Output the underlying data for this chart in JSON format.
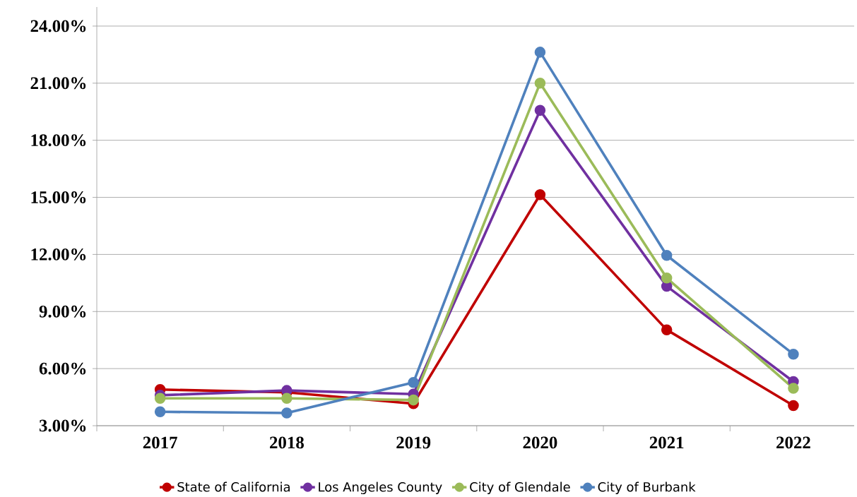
{
  "chart_data": {
    "type": "line",
    "categories": [
      "2017",
      "2018",
      "2019",
      "2020",
      "2021",
      "2022"
    ],
    "series": [
      {
        "name": "State of California",
        "color": "#c00000",
        "values": [
          4.9,
          4.75,
          4.16,
          15.14,
          8.04,
          4.06
        ]
      },
      {
        "name": "Los Angeles County",
        "color": "#7030a0",
        "values": [
          4.6,
          4.85,
          4.66,
          19.57,
          10.33,
          5.32
        ]
      },
      {
        "name": "City of Glendale",
        "color": "#9bbb59",
        "values": [
          4.44,
          4.44,
          4.35,
          21.0,
          10.76,
          4.97
        ]
      },
      {
        "name": "City of Burbank",
        "color": "#4f81bd",
        "values": [
          3.73,
          3.67,
          5.27,
          22.63,
          11.95,
          6.76
        ]
      }
    ],
    "ylim": [
      3,
      25
    ],
    "yticks": [
      {
        "value": 3,
        "label": "3.00%"
      },
      {
        "value": 6,
        "label": "6.00%"
      },
      {
        "value": 9,
        "label": "9.00%"
      },
      {
        "value": 12,
        "label": "12.00%"
      },
      {
        "value": 15,
        "label": "15.00%"
      },
      {
        "value": 18,
        "label": "18.00%"
      },
      {
        "value": 21,
        "label": "21.00%"
      },
      {
        "value": 24,
        "label": "24.00%"
      }
    ],
    "grid": "y",
    "legend": "bottom",
    "marker": "circle",
    "line_style": "solid"
  }
}
